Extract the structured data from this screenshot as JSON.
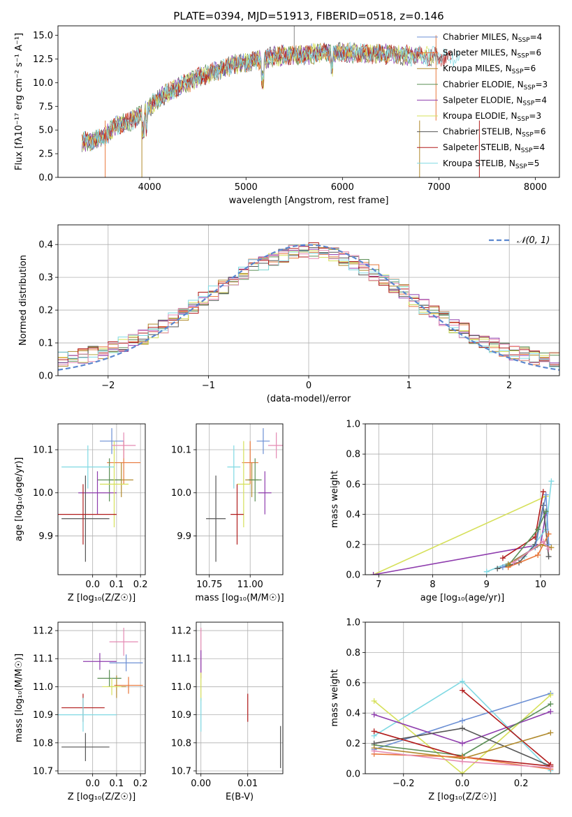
{
  "colors": {
    "grid": "#b0b0b0",
    "models": [
      "#6b8fd4",
      "#e8773a",
      "#b08a2c",
      "#5b8f55",
      "#8e3cad",
      "#d6e05a",
      "#555555",
      "#b11c1c",
      "#7fd9e3",
      "#e48ab3"
    ],
    "normal": "#5b87cf"
  },
  "chart_data": [
    {
      "id": "spectrum",
      "type": "line",
      "title": "PLATE=0394, MJD=51913, FIBERID=0518, z=0.146",
      "xlabel": "wavelength [Angstrom, rest frame]",
      "ylabel": "Flux [fλ10⁻¹⁷ erg cm⁻² s⁻¹ A⁻¹]",
      "xlim": [
        3050,
        8250
      ],
      "ylim": [
        0,
        16
      ],
      "xticks": [
        4000,
        5000,
        6000,
        7000,
        8000
      ],
      "yticks": [
        0.0,
        2.5,
        5.0,
        7.5,
        10.0,
        12.5,
        15.0
      ],
      "grid": false,
      "legend_position": "top-right",
      "continuum_anchors": [
        [
          3300,
          3.8
        ],
        [
          3500,
          4.0
        ],
        [
          3650,
          5.5
        ],
        [
          3800,
          5.9
        ],
        [
          3950,
          7.0
        ],
        [
          4100,
          8.4
        ],
        [
          4300,
          9.6
        ],
        [
          4500,
          10.5
        ],
        [
          4700,
          11.3
        ],
        [
          4900,
          12.0
        ],
        [
          5100,
          12.3
        ],
        [
          5300,
          12.8
        ],
        [
          5500,
          12.9
        ],
        [
          5800,
          13.1
        ],
        [
          6000,
          13.2
        ],
        [
          6300,
          13.1
        ],
        [
          6600,
          12.9
        ],
        [
          6900,
          12.8
        ],
        [
          7100,
          12.7
        ]
      ],
      "spikes": [
        [
          3540,
          0
        ],
        [
          3920,
          0
        ],
        [
          5500,
          16
        ],
        [
          6800,
          0
        ],
        [
          7420,
          0
        ],
        [
          6970,
          15
        ]
      ],
      "series": [
        {
          "label": "Chabrier MILES, N",
          "sub": "SSP",
          "n": "=4"
        },
        {
          "label": "Salpeter MILES, N",
          "sub": "SSP",
          "n": "=6"
        },
        {
          "label": "Kroupa MILES, N",
          "sub": "SSP",
          "n": "=6"
        },
        {
          "label": "Chabrier ELODIE, N",
          "sub": "SSP",
          "n": "=3"
        },
        {
          "label": "Salpeter ELODIE, N",
          "sub": "SSP",
          "n": "=4"
        },
        {
          "label": "Kroupa ELODIE, N",
          "sub": "SSP",
          "n": "=3"
        },
        {
          "label": "Chabrier STELIB, N",
          "sub": "SSP",
          "n": "=6"
        },
        {
          "label": "Salpeter STELIB, N",
          "sub": "SSP",
          "n": "=4"
        },
        {
          "label": "Kroupa STELIB, N",
          "sub": "SSP",
          "n": "=5"
        }
      ]
    },
    {
      "id": "residuals",
      "type": "bar",
      "xlabel": "(data-model)/error",
      "ylabel": "Normed distribution",
      "xlim": [
        -2.5,
        2.5
      ],
      "ylim": [
        0,
        0.46
      ],
      "xticks": [
        -2,
        -1,
        0,
        1,
        2
      ],
      "xticklabels": [
        "−2",
        "−1",
        "0",
        "1",
        "2"
      ],
      "yticks": [
        0.0,
        0.1,
        0.2,
        0.3,
        0.4
      ],
      "bin_width": 0.1,
      "grid": true,
      "legend_position": "top-right",
      "normal_label": "𝒩(0, 1)"
    },
    {
      "id": "age-Z",
      "type": "scatter",
      "xlabel": "Z [log₁₀(Z/Z☉)]",
      "ylabel": "age  [log₁₀(age/yr)]",
      "xlim": [
        -0.145,
        0.22
      ],
      "ylim": [
        9.81,
        10.16
      ],
      "xticks": [
        0.0,
        0.1,
        0.2
      ],
      "yticks": [
        9.9,
        10.0,
        10.1
      ],
      "grid": true,
      "points": [
        {
          "x": 0.08,
          "y": 10.12,
          "ex": 0.05,
          "ey": 0.03,
          "c": 0
        },
        {
          "x": 0.13,
          "y": 10.07,
          "ex": 0.07,
          "ey": 0.05,
          "c": 1
        },
        {
          "x": 0.12,
          "y": 10.03,
          "ex": 0.05,
          "ey": 0.04,
          "c": 2
        },
        {
          "x": 0.07,
          "y": 10.03,
          "ex": 0.05,
          "ey": 0.05,
          "c": 3
        },
        {
          "x": 0.02,
          "y": 10.0,
          "ex": 0.08,
          "ey": 0.05,
          "c": 4
        },
        {
          "x": 0.09,
          "y": 10.02,
          "ex": 0.06,
          "ey": 0.1,
          "c": 5
        },
        {
          "x": -0.03,
          "y": 9.94,
          "ex": 0.1,
          "ey": 0.1,
          "c": 6
        },
        {
          "x": -0.04,
          "y": 9.95,
          "ex": 0.14,
          "ey": 0.07,
          "c": 7
        },
        {
          "x": -0.02,
          "y": 10.06,
          "ex": 0.11,
          "ey": 0.05,
          "c": 8
        },
        {
          "x": 0.13,
          "y": 10.11,
          "ex": 0.05,
          "ey": 0.03,
          "c": 9
        }
      ]
    },
    {
      "id": "age-mass",
      "type": "scatter",
      "xlabel": "mass [log₁₀(M/M☉)]",
      "ylabel": "",
      "xlim": [
        10.67,
        11.2
      ],
      "ylim": [
        9.81,
        10.16
      ],
      "xticks": [
        10.75,
        11.0
      ],
      "xticklabels": [
        "10.75",
        "11.00"
      ],
      "yticks": [
        9.9,
        10.0,
        10.1
      ],
      "grid": true,
      "points": [
        {
          "x": 11.08,
          "y": 10.12,
          "ex": 0.04,
          "ey": 0.03,
          "c": 0
        },
        {
          "x": 11.0,
          "y": 10.07,
          "ex": 0.05,
          "ey": 0.05,
          "c": 1
        },
        {
          "x": 11.01,
          "y": 10.03,
          "ex": 0.04,
          "ey": 0.04,
          "c": 2
        },
        {
          "x": 11.03,
          "y": 10.03,
          "ex": 0.04,
          "ey": 0.05,
          "c": 3
        },
        {
          "x": 11.09,
          "y": 10.0,
          "ex": 0.04,
          "ey": 0.05,
          "c": 4
        },
        {
          "x": 10.96,
          "y": 10.02,
          "ex": 0.04,
          "ey": 0.1,
          "c": 5
        },
        {
          "x": 10.79,
          "y": 9.94,
          "ex": 0.06,
          "ey": 0.1,
          "c": 6
        },
        {
          "x": 10.92,
          "y": 9.95,
          "ex": 0.04,
          "ey": 0.07,
          "c": 7
        },
        {
          "x": 10.9,
          "y": 10.06,
          "ex": 0.04,
          "ey": 0.05,
          "c": 8
        },
        {
          "x": 11.16,
          "y": 10.11,
          "ex": 0.05,
          "ey": 0.03,
          "c": 9
        }
      ]
    },
    {
      "id": "weight-age",
      "type": "line",
      "xlabel": "age  [log₁₀(age/yr)]",
      "ylabel": "mass weight",
      "xlim": [
        6.75,
        10.35
      ],
      "ylim": [
        0,
        1
      ],
      "xticks": [
        7,
        8,
        9,
        10
      ],
      "yticks": [
        0.0,
        0.2,
        0.4,
        0.6,
        0.8,
        1.0
      ],
      "grid": true,
      "series": [
        {
          "c": 5,
          "x": [
            6.9,
            10.1
          ],
          "y": [
            0.0,
            0.52
          ]
        },
        {
          "c": 4,
          "x": [
            6.9,
            10.0,
            10.1
          ],
          "y": [
            0.0,
            0.2,
            0.41
          ]
        },
        {
          "c": 8,
          "x": [
            9.0,
            9.7,
            10.1,
            10.2
          ],
          "y": [
            0.02,
            0.12,
            0.3,
            0.62
          ]
        },
        {
          "c": 7,
          "x": [
            9.3,
            9.9,
            10.05
          ],
          "y": [
            0.11,
            0.25,
            0.55
          ]
        },
        {
          "c": 6,
          "x": [
            9.2,
            9.6,
            9.9,
            10.05,
            10.15
          ],
          "y": [
            0.04,
            0.08,
            0.2,
            0.46,
            0.12
          ]
        },
        {
          "c": 0,
          "x": [
            9.3,
            9.9,
            10.1,
            10.15
          ],
          "y": [
            0.05,
            0.18,
            0.53,
            0.2
          ]
        },
        {
          "c": 3,
          "x": [
            9.4,
            9.95,
            10.1
          ],
          "y": [
            0.06,
            0.3,
            0.42
          ]
        },
        {
          "c": 1,
          "x": [
            9.4,
            9.95,
            10.15
          ],
          "y": [
            0.05,
            0.13,
            0.27
          ]
        },
        {
          "c": 2,
          "x": [
            9.4,
            10.0,
            10.2
          ],
          "y": [
            0.07,
            0.2,
            0.18
          ]
        },
        {
          "c": 9,
          "x": [
            9.5,
            10.05,
            10.15
          ],
          "y": [
            0.08,
            0.22,
            0.17
          ]
        }
      ]
    },
    {
      "id": "mass-Z",
      "type": "scatter",
      "xlabel": "Z [log₁₀(Z/Z☉)]",
      "ylabel": "mass [log₁₀(M/M☉)]",
      "xlim": [
        -0.145,
        0.22
      ],
      "ylim": [
        10.69,
        11.23
      ],
      "xticks": [
        0.0,
        0.1,
        0.2
      ],
      "yticks": [
        10.7,
        10.8,
        10.9,
        11.0,
        11.1,
        11.2
      ],
      "grid": true,
      "points": [
        {
          "x": 0.14,
          "y": 11.085,
          "ex": 0.07,
          "ey": 0.03,
          "c": 0
        },
        {
          "x": 0.15,
          "y": 11.005,
          "ex": 0.06,
          "ey": 0.03,
          "c": 1
        },
        {
          "x": 0.1,
          "y": 11.0,
          "ex": 0.04,
          "ey": 0.04,
          "c": 2
        },
        {
          "x": 0.07,
          "y": 11.03,
          "ex": 0.05,
          "ey": 0.03,
          "c": 3
        },
        {
          "x": 0.03,
          "y": 11.09,
          "ex": 0.07,
          "ey": 0.03,
          "c": 4
        },
        {
          "x": 0.08,
          "y": 11.0,
          "ex": 0.04,
          "ey": 0.03,
          "c": 5
        },
        {
          "x": -0.03,
          "y": 10.785,
          "ex": 0.1,
          "ey": 0.05,
          "c": 6
        },
        {
          "x": -0.04,
          "y": 10.925,
          "ex": 0.09,
          "ey": 0.05,
          "c": 7
        },
        {
          "x": -0.04,
          "y": 10.9,
          "ex": 0.14,
          "ey": 0.06,
          "c": 8
        },
        {
          "x": 0.13,
          "y": 11.16,
          "ex": 0.06,
          "ey": 0.05,
          "c": 9
        }
      ]
    },
    {
      "id": "mass-ebv",
      "type": "scatter",
      "xlabel": "E(B-V)",
      "ylabel": "",
      "xlim": [
        -0.001,
        0.0175
      ],
      "ylim": [
        10.69,
        11.23
      ],
      "xticks": [
        0.0,
        0.01
      ],
      "xticklabels": [
        "0.00",
        "0.01"
      ],
      "yticks": [
        10.7,
        10.8,
        10.9,
        11.0,
        11.1,
        11.2
      ],
      "grid": true,
      "points": [
        {
          "x": 0.0,
          "y": 11.12,
          "ex": 0,
          "ey": 0.09,
          "c": 9
        },
        {
          "x": 0.0,
          "y": 11.09,
          "ex": 0,
          "ey": 0.04,
          "c": 4
        },
        {
          "x": 0.0,
          "y": 11.0,
          "ex": 0,
          "ey": 0.05,
          "c": 5
        },
        {
          "x": 0.0,
          "y": 10.9,
          "ex": 0,
          "ey": 0.06,
          "c": 8
        },
        {
          "x": 0.01,
          "y": 10.925,
          "ex": 0,
          "ey": 0.05,
          "c": 7
        },
        {
          "x": 0.017,
          "y": 10.785,
          "ex": 0,
          "ey": 0.075,
          "c": 6
        }
      ]
    },
    {
      "id": "weight-Z",
      "type": "line",
      "xlabel": "Z [log₁₀(Z/Z☉)]",
      "ylabel": "mass weight",
      "xlim": [
        -0.33,
        0.33
      ],
      "ylim": [
        0,
        1
      ],
      "xticks": [
        -0.2,
        0.0,
        0.2
      ],
      "xticklabels": [
        "−0.2",
        "0.0",
        "0.2"
      ],
      "yticks": [
        0.0,
        0.2,
        0.4,
        0.6,
        0.8,
        1.0
      ],
      "grid": true,
      "series": [
        {
          "c": 8,
          "x": [
            -0.3,
            0.0,
            0.3
          ],
          "y": [
            0.25,
            0.61,
            0.02
          ]
        },
        {
          "c": 0,
          "x": [
            -0.3,
            0.0,
            0.3
          ],
          "y": [
            0.16,
            0.35,
            0.53
          ]
        },
        {
          "c": 5,
          "x": [
            -0.3,
            0.0,
            0.3
          ],
          "y": [
            0.48,
            0.0,
            0.52
          ]
        },
        {
          "c": 4,
          "x": [
            -0.3,
            0.0,
            0.3
          ],
          "y": [
            0.39,
            0.2,
            0.41
          ]
        },
        {
          "c": 3,
          "x": [
            -0.3,
            0.0,
            0.3
          ],
          "y": [
            0.19,
            0.12,
            0.46
          ]
        },
        {
          "c": 6,
          "x": [
            -0.3,
            0.0,
            0.3
          ],
          "y": [
            0.2,
            0.3,
            0.05
          ]
        },
        {
          "c": 7,
          "x": [
            -0.3,
            0.0,
            0.3
          ],
          "y": [
            0.28,
            0.11,
            0.05
          ]
        },
        {
          "c": 7,
          "x": [
            0.0,
            0.3
          ],
          "y": [
            0.55,
            0.06
          ]
        },
        {
          "c": 2,
          "x": [
            -0.3,
            0.0,
            0.3
          ],
          "y": [
            0.17,
            0.1,
            0.27
          ]
        },
        {
          "c": 1,
          "x": [
            -0.3,
            0.0,
            0.3
          ],
          "y": [
            0.13,
            0.11,
            0.03
          ]
        },
        {
          "c": 9,
          "x": [
            -0.3,
            0.0,
            0.3
          ],
          "y": [
            0.15,
            0.08,
            0.04
          ]
        }
      ]
    }
  ]
}
